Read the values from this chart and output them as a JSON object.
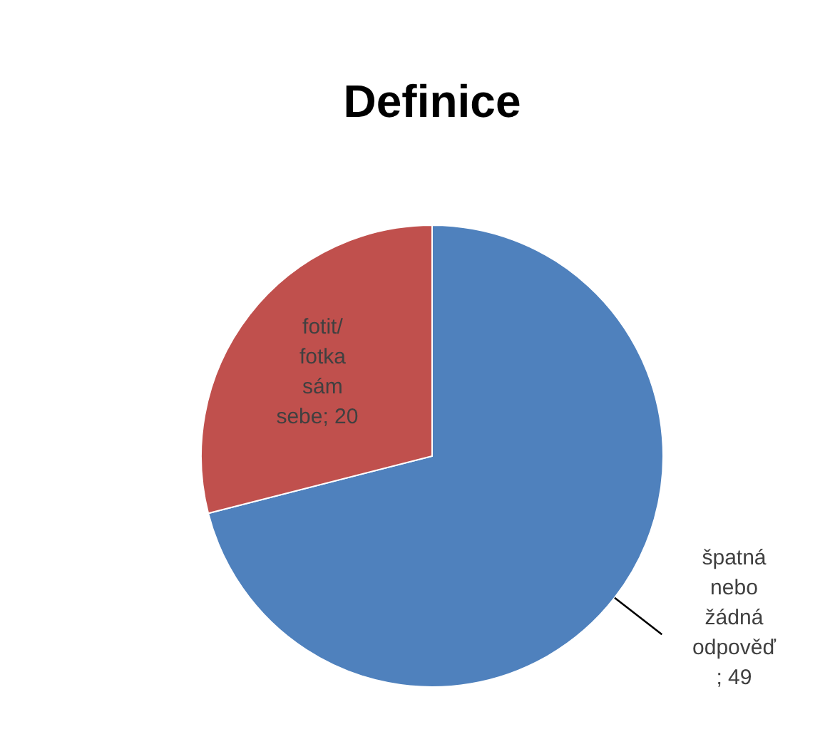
{
  "chart_data": {
    "type": "pie",
    "title": "Definice",
    "categories": [
      "špatná nebo žádná odpověď",
      "fotit/fotka sám sebe"
    ],
    "values": [
      49,
      20
    ],
    "colors": [
      "#4f81bd",
      "#c0504d"
    ],
    "value_labels": [
      "; 49",
      "; 20"
    ]
  }
}
